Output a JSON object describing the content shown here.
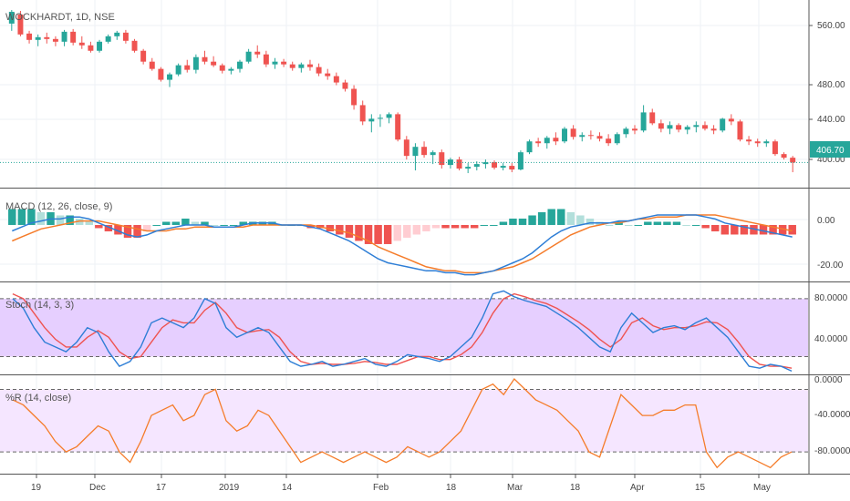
{
  "symbol_title": "WOCKHARDT, 1D, NSE",
  "colors": {
    "up": "#26a69a",
    "down": "#ef5350",
    "macd_line": "#2e7ed6",
    "signal_line": "#f57c2a",
    "stoch_k": "#2e7ed6",
    "stoch_d": "#ef5350",
    "stoch_band": "#e6cfff",
    "wr_line": "#f57c2a",
    "wr_band": "#f5e6ff",
    "price_tag": "#26a69a"
  },
  "time_axis": {
    "labels": [
      "19",
      "Dec",
      "17",
      "2019",
      "14",
      "Feb",
      "18",
      "Mar",
      "18",
      "Apr",
      "15",
      "May"
    ]
  },
  "panes": {
    "price": {
      "label": "WOCKHARDT, 1D, NSE",
      "ticks": [
        "560.00",
        "480.00",
        "440.00",
        "400.00"
      ],
      "last_price": "406.70"
    },
    "macd": {
      "label": "MACD (12, 26, close, 9)",
      "ticks": [
        "0.00",
        "-20.00"
      ]
    },
    "stoch": {
      "label": "Stoch (14, 3, 3)",
      "ticks": [
        "80.0000",
        "40.0000",
        "0.0000"
      ]
    },
    "wr": {
      "label": "%R (14, close)",
      "ticks": [
        "-40.0000",
        "-80.0000"
      ]
    }
  },
  "chart_data": [
    {
      "type": "candlestick",
      "title": "WOCKHARDT, 1D, NSE",
      "ylim": [
        385,
        580
      ],
      "y_ticks": [
        560,
        480,
        440,
        400
      ],
      "last_price": 406.7,
      "x_labels": [
        "19",
        "Dec",
        "17",
        "2019",
        "14",
        "Feb",
        "18",
        "Mar",
        "18",
        "Apr",
        "15",
        "May"
      ],
      "ohlc": [
        [
          560,
          575,
          552,
          573
        ],
        [
          570,
          574,
          546,
          548
        ],
        [
          549,
          552,
          538,
          542
        ],
        [
          542,
          548,
          535,
          545
        ],
        [
          545,
          550,
          538,
          543
        ],
        [
          543,
          546,
          535,
          540
        ],
        [
          540,
          553,
          535,
          551
        ],
        [
          551,
          554,
          536,
          539
        ],
        [
          539,
          546,
          532,
          536
        ],
        [
          536,
          540,
          528,
          530
        ],
        [
          530,
          542,
          528,
          540
        ],
        [
          540,
          548,
          538,
          546
        ],
        [
          546,
          552,
          542,
          550
        ],
        [
          550,
          553,
          538,
          541
        ],
        [
          541,
          543,
          528,
          530
        ],
        [
          530,
          532,
          515,
          518
        ],
        [
          518,
          522,
          508,
          510
        ],
        [
          510,
          512,
          496,
          498
        ],
        [
          498,
          506,
          490,
          504
        ],
        [
          504,
          516,
          502,
          514
        ],
        [
          514,
          520,
          506,
          509
        ],
        [
          509,
          526,
          505,
          523
        ],
        [
          523,
          530,
          515,
          518
        ],
        [
          518,
          524,
          512,
          514
        ],
        [
          514,
          516,
          505,
          508
        ],
        [
          508,
          512,
          504,
          510
        ],
        [
          510,
          520,
          506,
          518
        ],
        [
          518,
          532,
          516,
          529
        ],
        [
          529,
          536,
          522,
          526
        ],
        [
          526,
          530,
          512,
          515
        ],
        [
          515,
          522,
          510,
          518
        ],
        [
          518,
          521,
          512,
          515
        ],
        [
          515,
          518,
          508,
          511
        ],
        [
          511,
          517,
          506,
          515
        ],
        [
          515,
          520,
          508,
          512
        ],
        [
          512,
          516,
          502,
          505
        ],
        [
          505,
          510,
          498,
          502
        ],
        [
          502,
          506,
          492,
          495
        ],
        [
          495,
          498,
          485,
          488
        ],
        [
          488,
          492,
          465,
          470
        ],
        [
          470,
          475,
          448,
          452
        ],
        [
          452,
          460,
          440,
          455
        ],
        [
          455,
          460,
          446,
          456
        ],
        [
          456,
          462,
          450,
          460
        ],
        [
          460,
          462,
          430,
          432
        ],
        [
          432,
          436,
          410,
          414
        ],
        [
          414,
          428,
          398,
          424
        ],
        [
          424,
          430,
          412,
          415
        ],
        [
          415,
          420,
          405,
          418
        ],
        [
          418,
          421,
          400,
          404
        ],
        [
          404,
          412,
          400,
          410
        ],
        [
          410,
          413,
          398,
          400
        ],
        [
          400,
          406,
          395,
          402
        ],
        [
          402,
          408,
          398,
          405
        ],
        [
          405,
          410,
          400,
          407
        ],
        [
          407,
          409,
          399,
          401
        ],
        [
          401,
          406,
          398,
          403
        ],
        [
          403,
          406,
          396,
          399
        ],
        [
          399,
          420,
          398,
          418
        ],
        [
          418,
          432,
          416,
          430
        ],
        [
          430,
          434,
          424,
          428
        ],
        [
          428,
          436,
          422,
          434
        ],
        [
          434,
          440,
          426,
          430
        ],
        [
          430,
          446,
          428,
          444
        ],
        [
          444,
          448,
          432,
          435
        ],
        [
          435,
          440,
          430,
          437
        ],
        [
          437,
          442,
          432,
          436
        ],
        [
          436,
          440,
          430,
          433
        ],
        [
          433,
          438,
          425,
          428
        ],
        [
          428,
          440,
          426,
          438
        ],
        [
          438,
          446,
          434,
          444
        ],
        [
          444,
          448,
          438,
          442
        ],
        [
          442,
          470,
          440,
          462
        ],
        [
          462,
          466,
          448,
          450
        ],
        [
          450,
          454,
          440,
          444
        ],
        [
          444,
          452,
          438,
          448
        ],
        [
          448,
          450,
          440,
          443
        ],
        [
          443,
          448,
          438,
          446
        ],
        [
          446,
          452,
          440,
          448
        ],
        [
          448,
          452,
          442,
          444
        ],
        [
          444,
          448,
          438,
          442
        ],
        [
          442,
          456,
          440,
          455
        ],
        [
          455,
          460,
          448,
          452
        ],
        [
          452,
          454,
          430,
          432
        ],
        [
          432,
          436,
          426,
          430
        ],
        [
          430,
          433,
          424,
          428
        ],
        [
          428,
          432,
          424,
          430
        ],
        [
          430,
          432,
          414,
          416
        ],
        [
          416,
          418,
          410,
          412
        ],
        [
          412,
          414,
          396,
          406.7
        ]
      ]
    },
    {
      "type": "line",
      "title": "MACD (12, 26, close, 9)",
      "ylim": [
        -27,
        16
      ],
      "y_ticks": [
        0,
        -20
      ],
      "series": [
        {
          "name": "MACD",
          "values": [
            -3,
            -1,
            1,
            2,
            3,
            3,
            4,
            4,
            3,
            1,
            -1,
            -3,
            -5,
            -6,
            -5,
            -3,
            -2,
            -1,
            0,
            0,
            0,
            -1,
            -1,
            -1,
            0,
            1,
            1,
            1,
            0,
            0,
            0,
            -1,
            -2,
            -4,
            -6,
            -8,
            -11,
            -14,
            -17,
            -19,
            -20,
            -21,
            -22,
            -23,
            -23,
            -24,
            -24,
            -25,
            -25,
            -24,
            -23,
            -21,
            -19,
            -17,
            -14,
            -10,
            -6,
            -3,
            -1,
            0,
            1,
            1,
            1,
            2,
            2,
            3,
            4,
            5,
            5,
            5,
            5,
            5,
            4,
            3,
            1,
            0,
            -1,
            -2,
            -3,
            -4,
            -5,
            -6
          ]
        },
        {
          "name": "Signal",
          "values": [
            -8,
            -6,
            -4,
            -2,
            -1,
            0,
            1,
            2,
            2,
            2,
            1,
            0,
            -1,
            -2,
            -3,
            -3,
            -3,
            -2,
            -2,
            -1,
            -1,
            -1,
            -1,
            -1,
            -1,
            0,
            0,
            0,
            0,
            0,
            0,
            0,
            -1,
            -2,
            -3,
            -4,
            -6,
            -8,
            -11,
            -13,
            -15,
            -17,
            -19,
            -21,
            -22,
            -23,
            -23,
            -24,
            -24,
            -24,
            -23,
            -22,
            -21,
            -19,
            -17,
            -14,
            -11,
            -8,
            -5,
            -3,
            -1,
            0,
            1,
            1,
            2,
            3,
            3,
            4,
            4,
            4,
            5,
            5,
            5,
            5,
            4,
            3,
            2,
            1,
            0,
            -1,
            -2,
            -3
          ]
        }
      ]
    },
    {
      "type": "line",
      "title": "Stoch (14, 3, 3)",
      "ylim": [
        -5,
        95
      ],
      "y_ticks": [
        80,
        40,
        0
      ],
      "bands": [
        20,
        80
      ],
      "series": [
        {
          "name": "%K",
          "values": [
            80,
            70,
            50,
            35,
            30,
            25,
            35,
            50,
            45,
            25,
            10,
            15,
            30,
            55,
            60,
            55,
            50,
            60,
            80,
            75,
            50,
            40,
            45,
            50,
            45,
            30,
            15,
            10,
            12,
            15,
            10,
            12,
            15,
            18,
            12,
            10,
            15,
            22,
            20,
            18,
            15,
            20,
            30,
            40,
            60,
            85,
            88,
            82,
            78,
            75,
            72,
            65,
            58,
            50,
            40,
            30,
            25,
            50,
            65,
            55,
            45,
            50,
            52,
            48,
            55,
            60,
            50,
            40,
            25,
            10,
            8,
            12,
            10,
            5
          ]
        },
        {
          "name": "%D",
          "values": [
            85,
            80,
            65,
            50,
            38,
            30,
            30,
            40,
            47,
            40,
            25,
            18,
            20,
            35,
            50,
            58,
            55,
            55,
            68,
            76,
            65,
            50,
            45,
            47,
            48,
            40,
            25,
            15,
            12,
            13,
            12,
            12,
            13,
            15,
            14,
            12,
            12,
            16,
            20,
            20,
            17,
            17,
            22,
            30,
            45,
            65,
            80,
            85,
            82,
            78,
            75,
            70,
            63,
            56,
            48,
            38,
            30,
            38,
            55,
            60,
            52,
            48,
            50,
            50,
            52,
            56,
            55,
            48,
            35,
            20,
            12,
            10,
            10,
            8
          ]
        }
      ]
    },
    {
      "type": "line",
      "title": "%R (14, close)",
      "ylim": [
        -100,
        -10
      ],
      "y_ticks": [
        -40,
        -80
      ],
      "bands": [
        -20,
        -80
      ],
      "series": [
        {
          "name": "%R",
          "values": [
            -30,
            -35,
            -45,
            -55,
            -70,
            -80,
            -75,
            -65,
            -55,
            -60,
            -80,
            -90,
            -70,
            -45,
            -40,
            -35,
            -50,
            -45,
            -25,
            -20,
            -50,
            -60,
            -55,
            -40,
            -45,
            -60,
            -75,
            -90,
            -85,
            -80,
            -85,
            -90,
            -85,
            -80,
            -85,
            -90,
            -85,
            -75,
            -80,
            -85,
            -80,
            -70,
            -60,
            -40,
            -20,
            -15,
            -25,
            -10,
            -20,
            -30,
            -35,
            -40,
            -50,
            -60,
            -80,
            -85,
            -55,
            -25,
            -35,
            -45,
            -45,
            -40,
            -40,
            -35,
            -35,
            -80,
            -95,
            -85,
            -80,
            -85,
            -90,
            -95,
            -85,
            -80
          ]
        }
      ]
    }
  ]
}
